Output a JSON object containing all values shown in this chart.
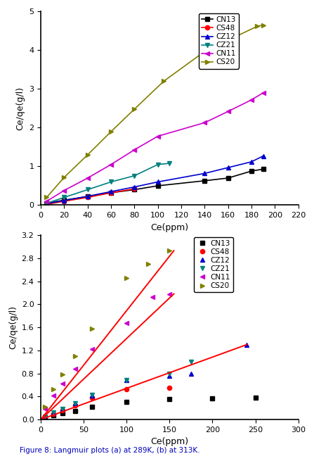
{
  "plot1": {
    "xlabel": "Ce(ppm)",
    "ylabel": "Ce/qe(g/l)",
    "xlim": [
      0,
      220
    ],
    "ylim": [
      0,
      5
    ],
    "xticks": [
      0,
      20,
      40,
      60,
      80,
      100,
      120,
      140,
      160,
      180,
      200,
      220
    ],
    "yticks": [
      0,
      1,
      2,
      3,
      4,
      5
    ],
    "series": [
      {
        "label": "CN13",
        "color": "#000000",
        "marker": "s",
        "x": [
          5,
          20,
          40,
          60,
          80,
          100,
          140,
          160,
          180,
          190
        ],
        "y": [
          0.05,
          0.13,
          0.22,
          0.32,
          0.4,
          0.5,
          0.63,
          0.7,
          0.88,
          0.93
        ]
      },
      {
        "label": "CS48",
        "color": "#ff0000",
        "marker": "o",
        "x": [
          5,
          20,
          40,
          60,
          80
        ],
        "y": [
          0.02,
          0.1,
          0.2,
          0.32,
          0.42
        ]
      },
      {
        "label": "CZ12",
        "color": "#0000cc",
        "marker": "^",
        "x": [
          5,
          20,
          40,
          60,
          80,
          100,
          140,
          160,
          180,
          190
        ],
        "y": [
          0.04,
          0.12,
          0.23,
          0.35,
          0.47,
          0.6,
          0.82,
          0.97,
          1.12,
          1.27
        ]
      },
      {
        "label": "CZ21",
        "color": "#008080",
        "marker": "v",
        "x": [
          5,
          20,
          40,
          60,
          80,
          100,
          110
        ],
        "y": [
          0.05,
          0.2,
          0.4,
          0.6,
          0.76,
          1.05,
          1.08
        ]
      },
      {
        "label": "CN11",
        "color": "#cc00cc",
        "marker": "<",
        "x": [
          5,
          20,
          40,
          60,
          80,
          100,
          140,
          160,
          180,
          190
        ],
        "y": [
          0.1,
          0.38,
          0.7,
          1.05,
          1.43,
          1.78,
          2.13,
          2.42,
          2.72,
          2.9
        ]
      },
      {
        "label": "CS20",
        "color": "#808000",
        "marker": ">",
        "x": [
          5,
          20,
          40,
          60,
          80,
          105,
          140,
          185,
          190
        ],
        "y": [
          0.2,
          0.72,
          1.3,
          1.9,
          2.48,
          3.2,
          3.97,
          4.62,
          4.65
        ]
      }
    ]
  },
  "plot2": {
    "xlabel": "Ce(ppm)",
    "ylabel": "Ce/qe(g/l)",
    "xlim": [
      0,
      300
    ],
    "ylim": [
      0,
      3.2
    ],
    "xticks": [
      0,
      50,
      100,
      150,
      200,
      250,
      300
    ],
    "yticks": [
      0.0,
      0.4,
      0.8,
      1.2,
      1.6,
      2.0,
      2.4,
      2.8,
      3.2
    ],
    "series": [
      {
        "label": "CN13",
        "color": "#000000",
        "marker": "s",
        "x": [
          5,
          15,
          25,
          40,
          60,
          100,
          150,
          200,
          250
        ],
        "y": [
          0.04,
          0.07,
          0.11,
          0.15,
          0.22,
          0.3,
          0.35,
          0.37,
          0.38
        ]
      },
      {
        "label": "CS48",
        "color": "#ff0000",
        "marker": "o",
        "x": [
          5,
          15,
          25,
          40,
          60,
          100,
          150
        ],
        "y": [
          0.04,
          0.1,
          0.16,
          0.25,
          0.38,
          0.52,
          0.55
        ]
      },
      {
        "label": "CZ12",
        "color": "#0000cc",
        "marker": "^",
        "x": [
          5,
          15,
          25,
          40,
          60,
          100,
          150,
          175,
          240
        ],
        "y": [
          0.05,
          0.12,
          0.18,
          0.28,
          0.42,
          0.68,
          0.76,
          0.8,
          1.3
        ]
      },
      {
        "label": "CZ21",
        "color": "#008080",
        "marker": "v",
        "x": [
          5,
          15,
          25,
          40,
          60,
          100,
          150,
          175
        ],
        "y": [
          0.05,
          0.12,
          0.18,
          0.28,
          0.43,
          0.68,
          0.8,
          1.0
        ]
      },
      {
        "label": "CN11",
        "color": "#cc00cc",
        "marker": "<",
        "x": [
          5,
          15,
          25,
          40,
          60,
          100,
          130,
          150
        ],
        "y": [
          0.18,
          0.42,
          0.62,
          0.88,
          1.22,
          1.68,
          2.12,
          2.18
        ]
      },
      {
        "label": "CS20",
        "color": "#808000",
        "marker": ">",
        "x": [
          5,
          15,
          25,
          40,
          60,
          100,
          125,
          150
        ],
        "y": [
          0.22,
          0.52,
          0.78,
          1.1,
          1.58,
          2.45,
          2.7,
          2.93
        ]
      }
    ],
    "fit_lines": [
      {
        "x": [
          0,
          155
        ],
        "y": [
          0.0,
          2.93
        ]
      },
      {
        "x": [
          0,
          155
        ],
        "y": [
          0.0,
          2.18
        ]
      },
      {
        "x": [
          0,
          240
        ],
        "y": [
          0.0,
          1.3
        ]
      }
    ]
  },
  "figure_caption": "Figure 8: Langmuir plots (a) at 289K, (b) at 313K.",
  "background_color": "#ffffff"
}
